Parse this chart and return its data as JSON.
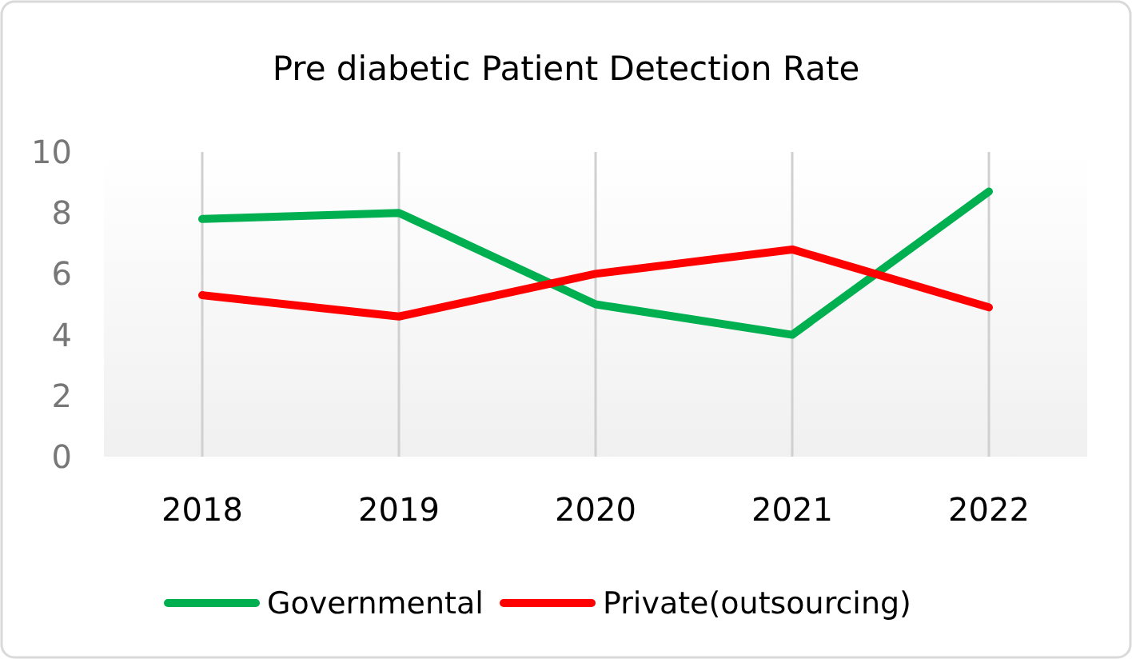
{
  "chart_data": {
    "type": "line",
    "title": "Pre diabetic Patient Detection Rate",
    "categories": [
      "2018",
      "2019",
      "2020",
      "2021",
      "2022"
    ],
    "series": [
      {
        "name": "Governmental",
        "color": "#00b050",
        "values": [
          7.8,
          8.0,
          5.0,
          4.0,
          8.7
        ]
      },
      {
        "name": "Private(outsourcing)",
        "color": "#ff0000",
        "values": [
          5.3,
          4.6,
          6.0,
          6.8,
          4.9
        ]
      }
    ],
    "ylim": [
      0,
      10
    ],
    "yticks": [
      0,
      2,
      4,
      6,
      8,
      10
    ],
    "grid": "x",
    "legend": "bottom",
    "marker": "none",
    "line_style": "solid"
  }
}
